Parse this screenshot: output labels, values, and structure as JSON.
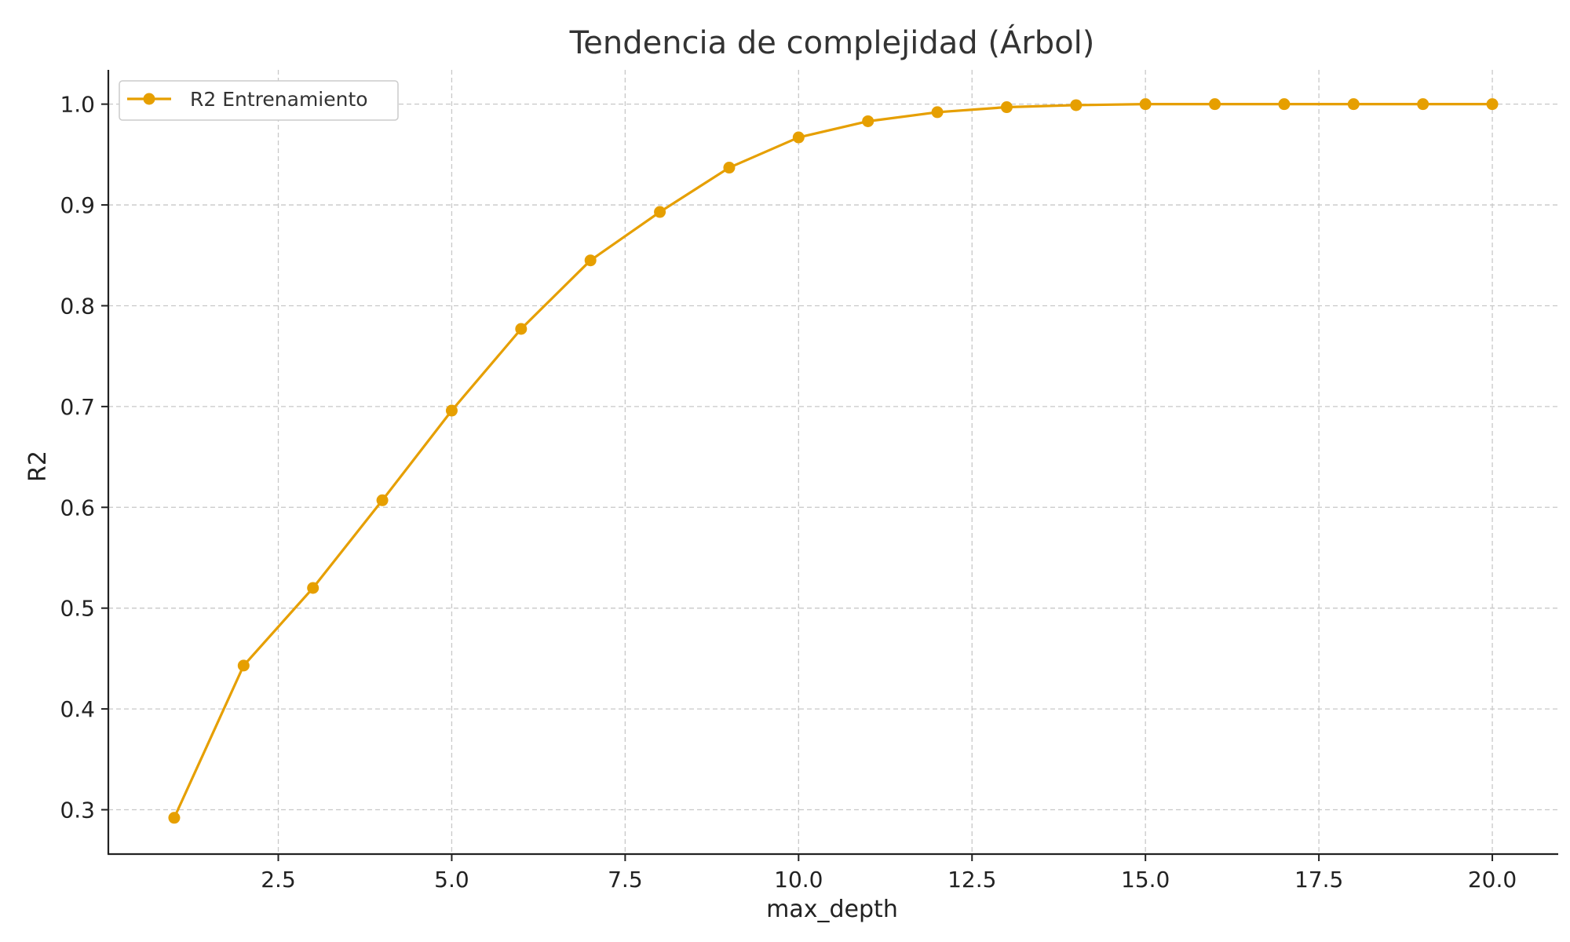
{
  "chart_data": {
    "type": "line",
    "title": "Tendencia de complejidad (Árbol)",
    "xlabel": "max_depth",
    "ylabel": "R2",
    "xlim": [
      0.05,
      20.95
    ],
    "ylim": [
      0.256,
      1.034
    ],
    "xticks": [
      "2.5",
      "5.0",
      "7.5",
      "10.0",
      "12.5",
      "15.0",
      "17.5",
      "20.0"
    ],
    "xtick_values": [
      2.5,
      5.0,
      7.5,
      10.0,
      12.5,
      15.0,
      17.5,
      20.0
    ],
    "yticks": [
      "0.3",
      "0.4",
      "0.5",
      "0.6",
      "0.7",
      "0.8",
      "0.9",
      "1.0"
    ],
    "ytick_values": [
      0.3,
      0.4,
      0.5,
      0.6,
      0.7,
      0.8,
      0.9,
      1.0
    ],
    "grid": true,
    "legend_position": "top-left",
    "series": [
      {
        "name": "R2 Entrenamiento",
        "color": "#E69F00",
        "x": [
          1,
          2,
          3,
          4,
          5,
          6,
          7,
          8,
          9,
          10,
          11,
          12,
          13,
          14,
          15,
          16,
          17,
          18,
          19,
          20
        ],
        "values": [
          0.292,
          0.443,
          0.52,
          0.607,
          0.696,
          0.777,
          0.845,
          0.893,
          0.937,
          0.967,
          0.983,
          0.992,
          0.997,
          0.999,
          1.0,
          1.0,
          1.0,
          1.0,
          1.0,
          1.0
        ]
      }
    ]
  }
}
